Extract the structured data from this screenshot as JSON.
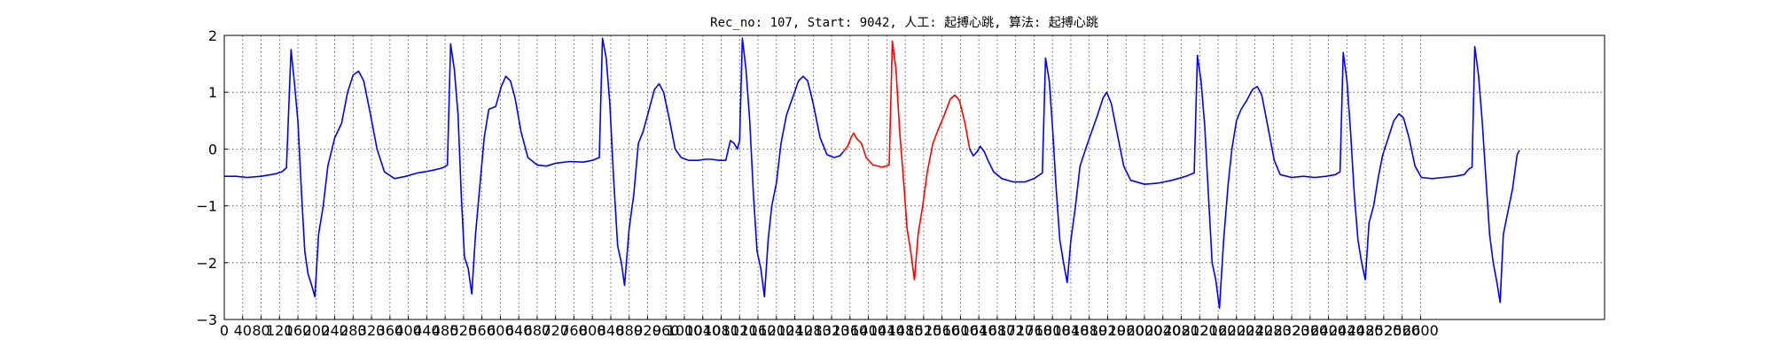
{
  "chart_data": {
    "type": "line",
    "title": "Rec_no: 107, Start: 9042, 人工: 起搏心跳, 算法: 起搏心跳",
    "xlabel": "",
    "ylabel": "",
    "xlim": [
      0,
      3000
    ],
    "ylim": [
      -3,
      2
    ],
    "grid": true,
    "legend": "none",
    "x_tick_labels": [
      "0",
      "40",
      "80",
      "120",
      "160",
      "200",
      "240",
      "280",
      "320",
      "360",
      "400",
      "440",
      "480",
      "520",
      "560",
      "600",
      "640",
      "680",
      "720",
      "760",
      "800",
      "840",
      "880",
      "920",
      "960",
      "1000",
      "1040",
      "1080",
      "1120",
      "1160",
      "1200",
      "1240",
      "1280",
      "1320",
      "1360",
      "1400",
      "1440",
      "1480",
      "1520",
      "1560",
      "1600",
      "1640",
      "1680",
      "1720",
      "1760",
      "1800",
      "1840",
      "1880",
      "1920",
      "1960",
      "2000",
      "2040",
      "2080",
      "2120",
      "2160",
      "2200",
      "2240",
      "2280",
      "2320",
      "2360",
      "2400",
      "2440",
      "2480",
      "2520",
      "2560",
      "2600"
    ],
    "y_ticks": [
      2,
      1,
      0,
      -1,
      -2,
      -3
    ],
    "y_tick_labels": [
      "2",
      "1",
      "0",
      "−1",
      "−2",
      "−3"
    ],
    "series": [
      {
        "color": "#0000ff",
        "points": [
          [
            0,
            -0.48
          ],
          [
            25,
            -0.48
          ],
          [
            50,
            -0.5
          ],
          [
            80,
            -0.48
          ],
          [
            110,
            -0.44
          ],
          [
            125,
            -0.4
          ],
          [
            135,
            -0.33
          ],
          [
            145,
            1.75
          ],
          [
            152,
            1.2
          ],
          [
            160,
            0.5
          ],
          [
            168,
            -0.8
          ],
          [
            175,
            -1.8
          ],
          [
            182,
            -2.2
          ],
          [
            190,
            -2.4
          ],
          [
            197,
            -2.6
          ],
          [
            205,
            -1.5
          ],
          [
            215,
            -1.0
          ],
          [
            225,
            -0.3
          ],
          [
            240,
            0.2
          ],
          [
            255,
            0.45
          ],
          [
            268,
            1.0
          ],
          [
            280,
            1.3
          ],
          [
            292,
            1.37
          ],
          [
            303,
            1.2
          ],
          [
            318,
            0.6
          ],
          [
            332,
            0.0
          ],
          [
            348,
            -0.4
          ],
          [
            370,
            -0.52
          ],
          [
            395,
            -0.48
          ],
          [
            420,
            -0.42
          ],
          [
            450,
            -0.38
          ],
          [
            475,
            -0.33
          ],
          [
            485,
            -0.28
          ],
          [
            492,
            1.85
          ],
          [
            500,
            1.4
          ],
          [
            508,
            0.6
          ],
          [
            515,
            -0.8
          ],
          [
            522,
            -1.9
          ],
          [
            530,
            -2.1
          ],
          [
            538,
            -2.55
          ],
          [
            546,
            -1.5
          ],
          [
            555,
            -0.7
          ],
          [
            565,
            0.2
          ],
          [
            575,
            0.7
          ],
          [
            590,
            0.75
          ],
          [
            602,
            1.1
          ],
          [
            612,
            1.28
          ],
          [
            622,
            1.2
          ],
          [
            632,
            0.9
          ],
          [
            645,
            0.3
          ],
          [
            660,
            -0.15
          ],
          [
            680,
            -0.28
          ],
          [
            700,
            -0.3
          ],
          [
            720,
            -0.25
          ],
          [
            750,
            -0.22
          ],
          [
            780,
            -0.23
          ],
          [
            800,
            -0.2
          ],
          [
            815,
            -0.15
          ],
          [
            822,
            1.95
          ],
          [
            830,
            1.6
          ],
          [
            838,
            0.8
          ],
          [
            846,
            -0.5
          ],
          [
            855,
            -1.7
          ],
          [
            863,
            -2.0
          ],
          [
            870,
            -2.4
          ],
          [
            880,
            -1.4
          ],
          [
            890,
            -0.8
          ],
          [
            900,
            0.1
          ],
          [
            910,
            0.3
          ],
          [
            920,
            0.6
          ],
          [
            935,
            1.05
          ],
          [
            945,
            1.15
          ],
          [
            955,
            1.0
          ],
          [
            968,
            0.5
          ],
          [
            980,
            0.0
          ],
          [
            993,
            -0.15
          ],
          [
            1010,
            -0.2
          ],
          [
            1030,
            -0.2
          ],
          [
            1045,
            -0.18
          ],
          [
            1060,
            -0.18
          ],
          [
            1075,
            -0.2
          ],
          [
            1090,
            -0.2
          ],
          [
            1100,
            0.15
          ],
          [
            1108,
            0.1
          ],
          [
            1115,
            0.0
          ],
          [
            1120,
            0.15
          ],
          [
            1126,
            1.95
          ],
          [
            1134,
            1.4
          ],
          [
            1142,
            0.5
          ],
          [
            1150,
            -0.8
          ],
          [
            1158,
            -1.8
          ],
          [
            1166,
            -2.1
          ],
          [
            1174,
            -2.6
          ],
          [
            1182,
            -1.6
          ],
          [
            1190,
            -1.0
          ],
          [
            1200,
            -0.6
          ],
          [
            1210,
            0.1
          ],
          [
            1222,
            0.6
          ],
          [
            1235,
            0.9
          ],
          [
            1248,
            1.2
          ],
          [
            1258,
            1.28
          ],
          [
            1268,
            1.2
          ],
          [
            1280,
            0.8
          ],
          [
            1295,
            0.2
          ],
          [
            1310,
            -0.1
          ],
          [
            1325,
            -0.15
          ],
          [
            1338,
            -0.12
          ],
          [
            1345,
            -0.05
          ]
        ]
      },
      {
        "color": "#ff0000",
        "points": [
          [
            1345,
            -0.05
          ],
          [
            1355,
            0.05
          ],
          [
            1362,
            0.2
          ],
          [
            1368,
            0.28
          ],
          [
            1375,
            0.18
          ],
          [
            1385,
            0.1
          ],
          [
            1395,
            -0.15
          ],
          [
            1410,
            -0.28
          ],
          [
            1430,
            -0.32
          ],
          [
            1445,
            -0.28
          ],
          [
            1452,
            1.9
          ],
          [
            1460,
            1.4
          ],
          [
            1468,
            0.3
          ],
          [
            1476,
            -0.5
          ],
          [
            1484,
            -1.4
          ],
          [
            1492,
            -1.8
          ],
          [
            1500,
            -2.3
          ],
          [
            1508,
            -1.5
          ],
          [
            1518,
            -1.0
          ],
          [
            1528,
            -0.4
          ],
          [
            1540,
            0.1
          ],
          [
            1552,
            0.35
          ],
          [
            1565,
            0.6
          ],
          [
            1578,
            0.88
          ],
          [
            1588,
            0.95
          ],
          [
            1598,
            0.85
          ],
          [
            1610,
            0.45
          ],
          [
            1620,
            0.0
          ]
        ]
      },
      {
        "color": "#0000ff",
        "points": [
          [
            1620,
            0.0
          ],
          [
            1628,
            -0.12
          ],
          [
            1636,
            -0.05
          ],
          [
            1643,
            0.05
          ],
          [
            1652,
            -0.05
          ],
          [
            1660,
            -0.2
          ],
          [
            1672,
            -0.4
          ],
          [
            1690,
            -0.52
          ],
          [
            1715,
            -0.58
          ],
          [
            1740,
            -0.58
          ],
          [
            1760,
            -0.52
          ],
          [
            1778,
            -0.42
          ],
          [
            1785,
            1.6
          ],
          [
            1793,
            1.2
          ],
          [
            1800,
            0.4
          ],
          [
            1808,
            -0.7
          ],
          [
            1816,
            -1.6
          ],
          [
            1824,
            -2.0
          ],
          [
            1832,
            -2.35
          ],
          [
            1840,
            -1.6
          ],
          [
            1850,
            -1.0
          ],
          [
            1860,
            -0.3
          ],
          [
            1872,
            0.0
          ],
          [
            1885,
            0.3
          ],
          [
            1898,
            0.6
          ],
          [
            1910,
            0.9
          ],
          [
            1918,
            1.0
          ],
          [
            1928,
            0.8
          ],
          [
            1940,
            0.3
          ],
          [
            1955,
            -0.3
          ],
          [
            1970,
            -0.55
          ],
          [
            2000,
            -0.62
          ],
          [
            2030,
            -0.6
          ],
          [
            2060,
            -0.55
          ],
          [
            2090,
            -0.48
          ],
          [
            2108,
            -0.42
          ],
          [
            2115,
            1.65
          ],
          [
            2123,
            1.2
          ],
          [
            2131,
            0.4
          ],
          [
            2139,
            -0.8
          ],
          [
            2147,
            -2.0
          ],
          [
            2155,
            -2.3
          ],
          [
            2163,
            -2.8
          ],
          [
            2172,
            -1.6
          ],
          [
            2182,
            -0.6
          ],
          [
            2190,
            0.0
          ],
          [
            2200,
            0.5
          ],
          [
            2210,
            0.7
          ],
          [
            2222,
            0.85
          ],
          [
            2235,
            1.05
          ],
          [
            2245,
            1.1
          ],
          [
            2255,
            0.95
          ],
          [
            2268,
            0.4
          ],
          [
            2282,
            -0.2
          ],
          [
            2295,
            -0.45
          ],
          [
            2320,
            -0.5
          ],
          [
            2345,
            -0.48
          ],
          [
            2370,
            -0.5
          ],
          [
            2395,
            -0.48
          ],
          [
            2415,
            -0.45
          ],
          [
            2425,
            -0.4
          ],
          [
            2432,
            1.7
          ],
          [
            2440,
            1.2
          ],
          [
            2448,
            0.3
          ],
          [
            2456,
            -0.8
          ],
          [
            2464,
            -1.6
          ],
          [
            2472,
            -2.0
          ],
          [
            2480,
            -2.3
          ],
          [
            2488,
            -1.3
          ],
          [
            2498,
            -1.0
          ],
          [
            2508,
            -0.5
          ],
          [
            2518,
            -0.1
          ],
          [
            2530,
            0.2
          ],
          [
            2542,
            0.5
          ],
          [
            2553,
            0.62
          ],
          [
            2563,
            0.55
          ],
          [
            2575,
            0.2
          ],
          [
            2588,
            -0.3
          ],
          [
            2602,
            -0.5
          ],
          [
            2625,
            -0.52
          ],
          [
            2650,
            -0.5
          ],
          [
            2675,
            -0.48
          ],
          [
            2695,
            -0.45
          ],
          [
            2705,
            -0.35
          ],
          [
            2712,
            -0.32
          ],
          [
            2718,
            1.8
          ],
          [
            2726,
            1.3
          ],
          [
            2734,
            0.5
          ],
          [
            2742,
            -0.5
          ],
          [
            2750,
            -1.5
          ],
          [
            2758,
            -2.0
          ],
          [
            2766,
            -2.35
          ],
          [
            2773,
            -2.7
          ],
          [
            2780,
            -1.5
          ],
          [
            2790,
            -1.1
          ],
          [
            2800,
            -0.7
          ],
          [
            2810,
            -0.1
          ],
          [
            2815,
            -0.02
          ]
        ]
      }
    ]
  }
}
